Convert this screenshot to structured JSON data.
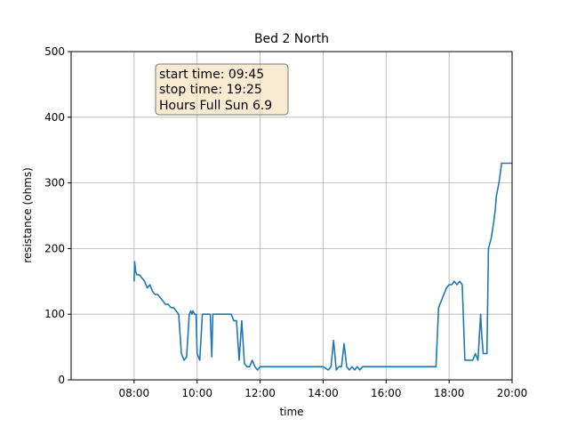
{
  "chart_data": {
    "type": "line",
    "title": "Bed 2 North",
    "xlabel": "time",
    "ylabel": "resistance (ohms)",
    "xlim": [
      "06:00",
      "20:00"
    ],
    "ylim": [
      0,
      500
    ],
    "x_ticks": [
      "08:00",
      "10:00",
      "12:00",
      "14:00",
      "16:00",
      "18:00",
      "20:00"
    ],
    "y_ticks": [
      0,
      100,
      200,
      300,
      400,
      500
    ],
    "grid": true,
    "line_color": "#1f77b4",
    "annotation": {
      "lines": [
        "start time: 09:45",
        "stop time: 19:25",
        "Hours Full Sun 6.9"
      ],
      "box_fill": "#f5deb3",
      "placement": "top-left"
    },
    "series": [
      {
        "x": [
          "08:00",
          "08:01",
          "08:03",
          "08:05",
          "08:10",
          "08:15",
          "08:20",
          "08:25",
          "08:30",
          "08:35",
          "08:40",
          "08:45",
          "08:50",
          "08:55",
          "09:00",
          "09:05",
          "09:10",
          "09:15",
          "09:20",
          "09:25",
          "09:30",
          "09:35",
          "09:40",
          "09:45",
          "09:48",
          "09:50",
          "09:52",
          "09:55",
          "09:58",
          "10:00",
          "10:05",
          "10:10",
          "10:15",
          "10:20",
          "10:25",
          "10:28",
          "10:30",
          "10:35",
          "10:40",
          "10:45",
          "10:50",
          "10:55",
          "11:00",
          "11:05",
          "11:10",
          "11:15",
          "11:20",
          "11:25",
          "11:30",
          "11:35",
          "11:40",
          "11:45",
          "11:50",
          "11:55",
          "12:00",
          "12:05",
          "12:10",
          "12:15",
          "12:20",
          "12:25",
          "12:30",
          "12:35",
          "12:40",
          "12:45",
          "12:50",
          "13:00",
          "13:30",
          "14:00",
          "14:10",
          "14:15",
          "14:20",
          "14:25",
          "14:30",
          "14:35",
          "14:40",
          "14:45",
          "14:50",
          "14:55",
          "15:00",
          "15:05",
          "15:10",
          "15:15",
          "15:20",
          "15:30",
          "15:40",
          "15:50",
          "16:00",
          "16:30",
          "17:00",
          "17:30",
          "17:35",
          "17:40",
          "17:45",
          "17:50",
          "17:55",
          "18:00",
          "18:05",
          "18:10",
          "18:15",
          "18:20",
          "18:25",
          "18:30",
          "18:35",
          "18:40",
          "18:45",
          "18:50",
          "18:55",
          "19:00",
          "19:02",
          "19:05",
          "19:08",
          "19:10",
          "19:12",
          "19:15",
          "19:20",
          "19:25",
          "19:28",
          "19:30",
          "19:35",
          "19:40",
          "19:45",
          "19:50",
          "19:55",
          "20:00"
        ],
        "y": [
          150,
          180,
          165,
          160,
          160,
          155,
          150,
          140,
          145,
          135,
          130,
          130,
          125,
          120,
          115,
          115,
          110,
          110,
          105,
          100,
          40,
          30,
          35,
          100,
          105,
          100,
          105,
          100,
          100,
          40,
          30,
          100,
          100,
          100,
          100,
          35,
          100,
          100,
          100,
          100,
          100,
          100,
          100,
          100,
          90,
          90,
          30,
          90,
          25,
          20,
          20,
          30,
          20,
          15,
          20,
          20,
          20,
          20,
          20,
          20,
          20,
          20,
          20,
          20,
          20,
          20,
          20,
          20,
          15,
          20,
          60,
          15,
          20,
          20,
          55,
          20,
          15,
          20,
          15,
          20,
          15,
          20,
          20,
          20,
          20,
          20,
          20,
          20,
          20,
          20,
          20,
          110,
          120,
          130,
          140,
          145,
          145,
          150,
          145,
          150,
          145,
          30,
          30,
          30,
          30,
          40,
          30,
          100,
          70,
          40,
          40,
          40,
          40,
          200,
          215,
          240,
          260,
          280,
          300,
          330,
          330,
          330,
          330,
          330
        ]
      }
    ]
  }
}
